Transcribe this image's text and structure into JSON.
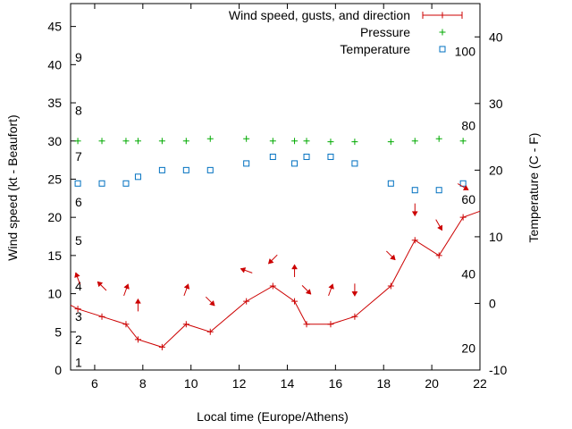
{
  "chart_data": {
    "type": "line",
    "xlabel": "Local time (Europe/Athens)",
    "ylabel": "Wind speed (kt - Beaufort)",
    "y2label": "Temperature (C - F)",
    "xlim": [
      5,
      22
    ],
    "ylim": [
      0,
      48
    ],
    "y2lim": [
      -10,
      45
    ],
    "xticks": [
      6,
      8,
      10,
      12,
      14,
      16,
      18,
      20,
      22
    ],
    "yticks": [
      0,
      5,
      10,
      15,
      20,
      25,
      30,
      35,
      40,
      45
    ],
    "y2ticks": [
      -10,
      0,
      10,
      20,
      30,
      40
    ],
    "beaufort_labels": [
      {
        "label": "1",
        "y": 1
      },
      {
        "label": "2",
        "y": 4
      },
      {
        "label": "3",
        "y": 7
      },
      {
        "label": "4",
        "y": 11
      },
      {
        "label": "5",
        "y": 17
      },
      {
        "label": "6",
        "y": 22
      },
      {
        "label": "7",
        "y": 28
      },
      {
        "label": "8",
        "y": 34
      },
      {
        "label": "9",
        "y": 41
      }
    ],
    "fahrenheit_labels": [
      {
        "label": "20",
        "temp": -6.7
      },
      {
        "label": "40",
        "temp": 4.4
      },
      {
        "label": "60",
        "temp": 15.6
      },
      {
        "label": "80",
        "temp": 26.7
      },
      {
        "label": "100",
        "temp": 37.8
      }
    ],
    "legend": [
      {
        "name": "Wind speed, gusts, and direction",
        "color": "#cc0000"
      },
      {
        "name": "Pressure",
        "color": "#00aa00"
      },
      {
        "name": "Temperature",
        "color": "#0070c0"
      }
    ],
    "legend_position": "top-right",
    "series": [
      {
        "name": "Wind speed, gusts, and direction",
        "x": [
          5,
          5.3,
          6.3,
          7.3,
          7.8,
          8.8,
          9.8,
          10.8,
          12.3,
          13.4,
          14.3,
          14.8,
          15.8,
          16.8,
          18.3,
          19.3,
          20.3,
          21.3,
          22
        ],
        "values": [
          8.5,
          8,
          7,
          6,
          4,
          3,
          6,
          5,
          9,
          11,
          9,
          6,
          6,
          7,
          11,
          17,
          15,
          20,
          20.8
        ],
        "marker_x": [
          5.3,
          6.3,
          7.3,
          7.8,
          8.8,
          9.8,
          10.8,
          12.3,
          13.4,
          14.3,
          14.8,
          15.8,
          16.8,
          18.3,
          19.3,
          20.3,
          21.3
        ]
      },
      {
        "name": "Pressure",
        "x": [
          5.3,
          6.3,
          7.3,
          7.8,
          8.8,
          9.8,
          10.8,
          12.3,
          13.4,
          14.3,
          14.8,
          15.8,
          16.8,
          18.3,
          19.3,
          20.3,
          21.3
        ],
        "values": [
          30,
          30,
          30,
          30,
          30,
          30,
          30.3,
          30.3,
          30,
          30,
          30,
          29.9,
          29.9,
          29.9,
          30,
          30.3,
          30
        ]
      },
      {
        "name": "Temperature",
        "x": [
          5.3,
          6.3,
          7.3,
          7.8,
          8.8,
          9.8,
          10.8,
          12.3,
          13.4,
          14.3,
          14.8,
          15.8,
          16.8,
          18.3,
          19.3,
          20.3,
          21.3
        ],
        "values": [
          18,
          18,
          18,
          19,
          20,
          20,
          20,
          21,
          22,
          21,
          22,
          22,
          21,
          18,
          17,
          17,
          18
        ]
      }
    ],
    "gusts": [
      {
        "x": 5.3,
        "y": 12,
        "dir": 200
      },
      {
        "x": 6.3,
        "y": 11,
        "dir": 225
      },
      {
        "x": 7.3,
        "y": 10.5,
        "dir": 160
      },
      {
        "x": 7.8,
        "y": 8.5,
        "dir": 180
      },
      {
        "x": 9.8,
        "y": 10.5,
        "dir": 160
      },
      {
        "x": 10.8,
        "y": 9,
        "dir": 45
      },
      {
        "x": 12.3,
        "y": 13,
        "dir": 250
      },
      {
        "x": 13.4,
        "y": 14.5,
        "dir": 315
      },
      {
        "x": 14.3,
        "y": 13,
        "dir": 180
      },
      {
        "x": 14.8,
        "y": 10.5,
        "dir": 45
      },
      {
        "x": 15.8,
        "y": 10.5,
        "dir": 160
      },
      {
        "x": 16.8,
        "y": 10.5,
        "dir": 0
      },
      {
        "x": 18.3,
        "y": 15,
        "dir": 45
      },
      {
        "x": 19.3,
        "y": 21,
        "dir": 0
      },
      {
        "x": 20.3,
        "y": 19,
        "dir": 30
      },
      {
        "x": 21.3,
        "y": 24,
        "dir": 60
      }
    ]
  }
}
